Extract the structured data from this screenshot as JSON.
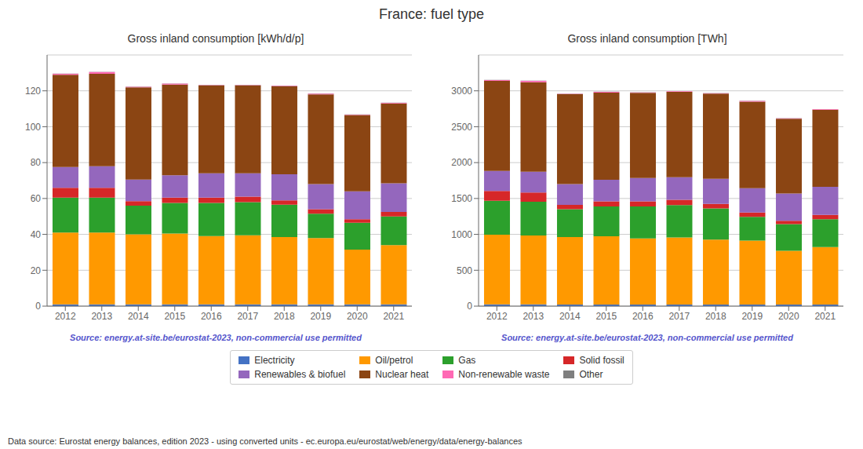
{
  "title": "France: fuel type",
  "legend": "bottom",
  "annotations": [
    "Data source: Eurostat energy balances, edition 2023 - using converted units - ec.europa.eu/eurostat/web/energy/data/energy-balances"
  ],
  "chart_data": [
    {
      "type": "bar",
      "stacked": true,
      "grid": true,
      "title": "Gross inland consumption [kWh/d/p]",
      "annotations": [
        {
          "text": "Source: energy.at-site.be/eurostat-2023, non-commercial use permitted",
          "color": "#5555cc"
        }
      ],
      "categories": [
        2012,
        2013,
        2014,
        2015,
        2016,
        2017,
        2018,
        2019,
        2020,
        2021
      ],
      "ylim": [
        0,
        140
      ],
      "yticks": [
        0,
        20,
        40,
        60,
        80,
        100,
        120
      ],
      "series": [
        {
          "name": "Electricity",
          "color": "#4472c4",
          "values": [
            1.0,
            1.0,
            1.0,
            1.0,
            1.0,
            1.0,
            1.0,
            1.0,
            1.0,
            1.0
          ]
        },
        {
          "name": "Oil/petrol",
          "color": "#ff9900",
          "values": [
            40.0,
            40.0,
            39.0,
            39.5,
            38.0,
            38.5,
            37.5,
            37.0,
            30.5,
            33.0
          ]
        },
        {
          "name": "Gas",
          "color": "#2ca02c",
          "values": [
            19.5,
            19.5,
            16.0,
            17.0,
            18.5,
            18.5,
            18.0,
            13.5,
            15.0,
            16.0
          ]
        },
        {
          "name": "Solid fossil",
          "color": "#d62728",
          "values": [
            5.5,
            5.5,
            2.5,
            3.0,
            3.0,
            3.0,
            2.5,
            2.5,
            2.0,
            2.5
          ]
        },
        {
          "name": "Renewables & biofuel",
          "color": "#9467bd",
          "values": [
            11.5,
            12.0,
            12.0,
            12.5,
            13.5,
            13.0,
            14.5,
            14.0,
            15.5,
            16.0
          ]
        },
        {
          "name": "Nuclear heat",
          "color": "#8b4513",
          "values": [
            51.5,
            51.5,
            51.5,
            50.5,
            49.0,
            49.0,
            49.0,
            50.0,
            42.5,
            44.5
          ]
        },
        {
          "name": "Non-renewable waste",
          "color": "#ff69b4",
          "values": [
            0.5,
            1.0,
            0.3,
            0.5,
            0.3,
            0.3,
            0.3,
            0.5,
            0.3,
            0.3
          ]
        },
        {
          "name": "Other",
          "color": "#7f7f7f",
          "values": [
            0.1,
            0.1,
            0.1,
            0.1,
            0.1,
            0.1,
            0.1,
            0.1,
            0.1,
            0.1
          ]
        }
      ]
    },
    {
      "type": "bar",
      "stacked": true,
      "grid": true,
      "title": "Gross inland consumption [TWh]",
      "annotations": [
        {
          "text": "Source: energy.at-site.be/eurostat-2023, non-commercial use permitted",
          "color": "#5555cc"
        }
      ],
      "categories": [
        2012,
        2013,
        2014,
        2015,
        2016,
        2017,
        2018,
        2019,
        2020,
        2021
      ],
      "ylim": [
        0,
        3500
      ],
      "yticks": [
        0,
        500,
        1000,
        1500,
        2000,
        2500,
        3000
      ],
      "series": [
        {
          "name": "Electricity",
          "color": "#4472c4",
          "values": [
            24,
            24,
            22,
            23,
            23,
            23,
            23,
            23,
            22,
            22
          ]
        },
        {
          "name": "Oil/petrol",
          "color": "#ff9900",
          "values": [
            970,
            960,
            940,
            950,
            920,
            935,
            905,
            890,
            750,
            800
          ]
        },
        {
          "name": "Gas",
          "color": "#2ca02c",
          "values": [
            475,
            470,
            390,
            415,
            445,
            450,
            435,
            330,
            370,
            390
          ]
        },
        {
          "name": "Solid fossil",
          "color": "#d62728",
          "values": [
            135,
            130,
            60,
            72,
            73,
            73,
            62,
            60,
            48,
            60
          ]
        },
        {
          "name": "Renewables & biofuel",
          "color": "#9467bd",
          "values": [
            280,
            290,
            290,
            300,
            325,
            315,
            350,
            340,
            380,
            390
          ]
        },
        {
          "name": "Nuclear heat",
          "color": "#8b4513",
          "values": [
            1255,
            1245,
            1250,
            1215,
            1185,
            1190,
            1185,
            1205,
            1040,
            1075
          ]
        },
        {
          "name": "Non-renewable waste",
          "color": "#ff69b4",
          "values": [
            12,
            20,
            7,
            12,
            7,
            7,
            7,
            12,
            7,
            7
          ]
        },
        {
          "name": "Other",
          "color": "#7f7f7f",
          "values": [
            2,
            2,
            2,
            2,
            2,
            2,
            2,
            2,
            2,
            2
          ]
        }
      ]
    }
  ]
}
